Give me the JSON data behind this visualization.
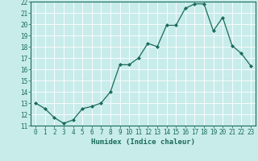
{
  "x": [
    0,
    1,
    2,
    3,
    4,
    5,
    6,
    7,
    8,
    9,
    10,
    11,
    12,
    13,
    14,
    15,
    16,
    17,
    18,
    19,
    20,
    21,
    22,
    23
  ],
  "y": [
    13.0,
    12.5,
    11.7,
    11.2,
    11.5,
    12.5,
    12.7,
    13.0,
    14.0,
    16.4,
    16.4,
    17.0,
    18.3,
    18.0,
    19.9,
    19.9,
    21.4,
    21.8,
    21.8,
    19.4,
    20.6,
    18.1,
    17.4,
    16.3
  ],
  "line_color": "#1a6b5a",
  "marker": "D",
  "markersize": 2.0,
  "linewidth": 0.9,
  "bg_color": "#c8ecea",
  "grid_color": "#ffffff",
  "xlabel": "Humidex (Indice chaleur)",
  "xlabel_fontsize": 6.5,
  "tick_fontsize": 5.5,
  "ylim": [
    11,
    22
  ],
  "xlim": [
    -0.5,
    23.5
  ],
  "yticks": [
    11,
    12,
    13,
    14,
    15,
    16,
    17,
    18,
    19,
    20,
    21,
    22
  ],
  "xticks": [
    0,
    1,
    2,
    3,
    4,
    5,
    6,
    7,
    8,
    9,
    10,
    11,
    12,
    13,
    14,
    15,
    16,
    17,
    18,
    19,
    20,
    21,
    22,
    23
  ]
}
